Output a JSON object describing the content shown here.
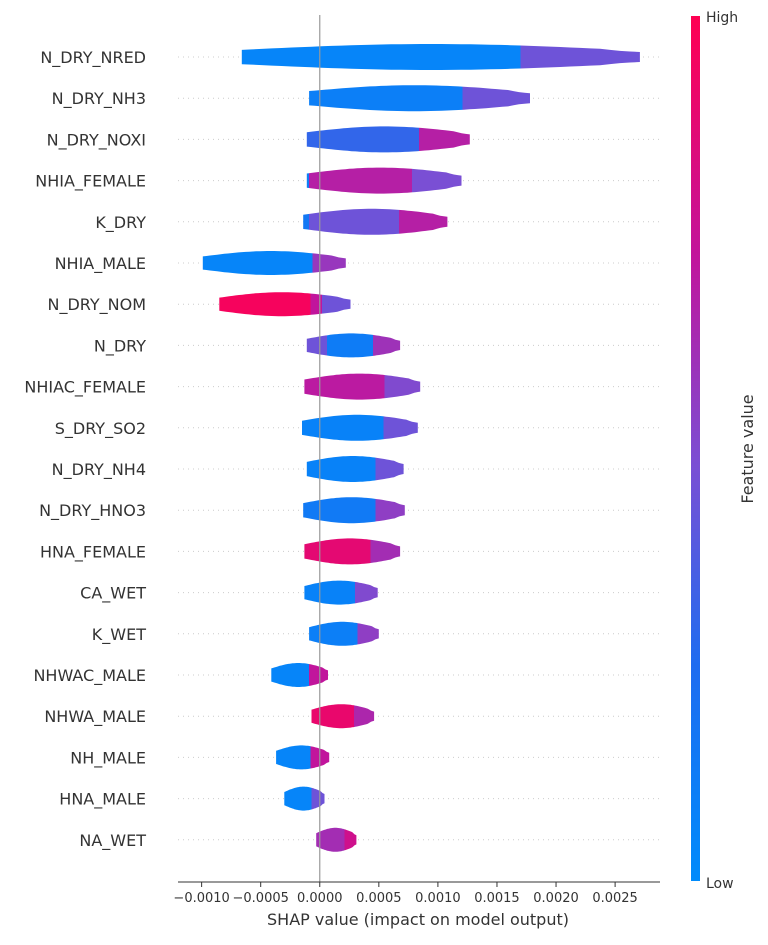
{
  "chart_data": {
    "type": "violin",
    "xlabel": "SHAP value (impact on model output)",
    "xlim": [
      -0.0012,
      0.00288
    ],
    "x_ticks": [
      {
        "value": -0.001,
        "label": "−0.0010"
      },
      {
        "value": -0.0005,
        "label": "−0.0005"
      },
      {
        "value": 0.0,
        "label": "0.0000"
      },
      {
        "value": 0.0005,
        "label": "0.0005"
      },
      {
        "value": 0.001,
        "label": "0.0010"
      },
      {
        "value": 0.0015,
        "label": "0.0015"
      },
      {
        "value": 0.002,
        "label": "0.0020"
      },
      {
        "value": 0.0025,
        "label": "0.0025"
      }
    ],
    "colorbar": {
      "label": "Feature value",
      "high_label": "High",
      "low_label": "Low",
      "low_color": "#008bfb",
      "high_color": "#ff0052"
    },
    "features": [
      {
        "name": "N_DRY_NRED",
        "min": -0.00066,
        "max": 0.00271,
        "hw": 13,
        "stops": [
          [
            -0.00066,
            0.05
          ],
          [
            0.0017,
            0.05
          ],
          [
            0.0017,
            0.45
          ],
          [
            0.00271,
            0.45
          ]
        ]
      },
      {
        "name": "N_DRY_NH3",
        "min": -9e-05,
        "max": 0.00178,
        "hw": 13,
        "stops": [
          [
            -9e-05,
            0.1
          ],
          [
            0.00121,
            0.1
          ],
          [
            0.00121,
            0.45
          ],
          [
            0.00178,
            0.45
          ]
        ]
      },
      {
        "name": "N_DRY_NOXI",
        "min": -0.00011,
        "max": 0.00127,
        "hw": 13,
        "stops": [
          [
            -0.00011,
            0.3
          ],
          [
            0.00084,
            0.3
          ],
          [
            0.00084,
            0.68
          ],
          [
            0.00127,
            0.68
          ]
        ]
      },
      {
        "name": "NHIA_FEMALE",
        "min": -0.00011,
        "max": 0.0012,
        "hw": 13,
        "stops": [
          [
            -0.00011,
            0.1
          ],
          [
            -9e-05,
            0.1
          ],
          [
            -9e-05,
            0.68
          ],
          [
            0.00078,
            0.68
          ],
          [
            0.00078,
            0.48
          ],
          [
            0.0012,
            0.48
          ]
        ]
      },
      {
        "name": "K_DRY",
        "min": -0.00014,
        "max": 0.00108,
        "hw": 13,
        "stops": [
          [
            -0.00014,
            0.15
          ],
          [
            -9e-05,
            0.15
          ],
          [
            -9e-05,
            0.45
          ],
          [
            0.00067,
            0.45
          ],
          [
            0.00067,
            0.68
          ],
          [
            0.00108,
            0.68
          ]
        ]
      },
      {
        "name": "NHIA_MALE",
        "min": -0.00099,
        "max": 0.00022,
        "hw": 12,
        "stops": [
          [
            -0.00099,
            0.05
          ],
          [
            -6e-05,
            0.05
          ],
          [
            -6e-05,
            0.58
          ],
          [
            0.00022,
            0.58
          ]
        ]
      },
      {
        "name": "N_DRY_NOM",
        "min": -0.00085,
        "max": 0.00026,
        "hw": 12,
        "stops": [
          [
            -0.00085,
            0.96
          ],
          [
            -8e-05,
            0.96
          ],
          [
            -8e-05,
            0.72
          ],
          [
            2e-05,
            0.72
          ],
          [
            2e-05,
            0.45
          ],
          [
            0.00026,
            0.45
          ]
        ]
      },
      {
        "name": "N_DRY",
        "min": -0.00011,
        "max": 0.00068,
        "hw": 12,
        "stops": [
          [
            -0.00011,
            0.45
          ],
          [
            6e-05,
            0.45
          ],
          [
            6e-05,
            0.12
          ],
          [
            0.00045,
            0.12
          ],
          [
            0.00045,
            0.6
          ],
          [
            0.00068,
            0.6
          ]
        ]
      },
      {
        "name": "NHIAC_FEMALE",
        "min": -0.00013,
        "max": 0.00085,
        "hw": 13,
        "stops": [
          [
            -0.00013,
            0.7
          ],
          [
            0.00055,
            0.7
          ],
          [
            0.00055,
            0.5
          ],
          [
            0.00085,
            0.5
          ]
        ]
      },
      {
        "name": "S_DRY_SO2",
        "min": -0.00015,
        "max": 0.00083,
        "hw": 13,
        "stops": [
          [
            -0.00015,
            0.07
          ],
          [
            0.00054,
            0.07
          ],
          [
            0.00054,
            0.45
          ],
          [
            0.00083,
            0.45
          ]
        ]
      },
      {
        "name": "N_DRY_NH4",
        "min": -0.00011,
        "max": 0.00071,
        "hw": 13,
        "stops": [
          [
            -0.00011,
            0.07
          ],
          [
            0.00047,
            0.07
          ],
          [
            0.00047,
            0.45
          ],
          [
            0.00071,
            0.45
          ]
        ]
      },
      {
        "name": "N_DRY_HNO3",
        "min": -0.00014,
        "max": 0.00072,
        "hw": 13,
        "stops": [
          [
            -0.00014,
            0.14
          ],
          [
            0.00047,
            0.14
          ],
          [
            0.00047,
            0.55
          ],
          [
            0.00072,
            0.55
          ]
        ]
      },
      {
        "name": "HNA_FEMALE",
        "min": -0.00013,
        "max": 0.00068,
        "hw": 13,
        "stops": [
          [
            -0.00013,
            0.88
          ],
          [
            0.00043,
            0.88
          ],
          [
            0.00043,
            0.62
          ],
          [
            0.00068,
            0.62
          ]
        ]
      },
      {
        "name": "CA_WET",
        "min": -0.00013,
        "max": 0.00049,
        "hw": 12,
        "stops": [
          [
            -0.00013,
            0.07
          ],
          [
            0.0003,
            0.07
          ],
          [
            0.0003,
            0.5
          ],
          [
            0.00049,
            0.5
          ]
        ]
      },
      {
        "name": "K_WET",
        "min": -9e-05,
        "max": 0.0005,
        "hw": 12,
        "stops": [
          [
            -9e-05,
            0.1
          ],
          [
            0.00032,
            0.1
          ],
          [
            0.00032,
            0.55
          ],
          [
            0.0005,
            0.55
          ]
        ]
      },
      {
        "name": "NHWAC_MALE",
        "min": -0.00041,
        "max": 7e-05,
        "hw": 12,
        "stops": [
          [
            -0.00041,
            0.05
          ],
          [
            -9e-05,
            0.05
          ],
          [
            -9e-05,
            0.72
          ],
          [
            7e-05,
            0.72
          ]
        ]
      },
      {
        "name": "NHWA_MALE",
        "min": -7e-05,
        "max": 0.00046,
        "hw": 12,
        "stops": [
          [
            -7e-05,
            0.9
          ],
          [
            0.00029,
            0.9
          ],
          [
            0.00029,
            0.65
          ],
          [
            0.00046,
            0.65
          ]
        ]
      },
      {
        "name": "NH_MALE",
        "min": -0.00037,
        "max": 8e-05,
        "hw": 12,
        "stops": [
          [
            -0.00037,
            0.05
          ],
          [
            -8e-05,
            0.05
          ],
          [
            -8e-05,
            0.72
          ],
          [
            8e-05,
            0.72
          ]
        ]
      },
      {
        "name": "HNA_MALE",
        "min": -0.0003,
        "max": 4e-05,
        "hw": 12,
        "stops": [
          [
            -0.0003,
            0.05
          ],
          [
            -7e-05,
            0.05
          ],
          [
            -7e-05,
            0.45
          ],
          [
            4e-05,
            0.45
          ]
        ]
      },
      {
        "name": "NA_WET",
        "min": -3e-05,
        "max": 0.00031,
        "hw": 12,
        "stops": [
          [
            -3e-05,
            0.62
          ],
          [
            0.00021,
            0.62
          ],
          [
            0.00021,
            0.78
          ],
          [
            0.00031,
            0.78
          ]
        ]
      }
    ]
  }
}
